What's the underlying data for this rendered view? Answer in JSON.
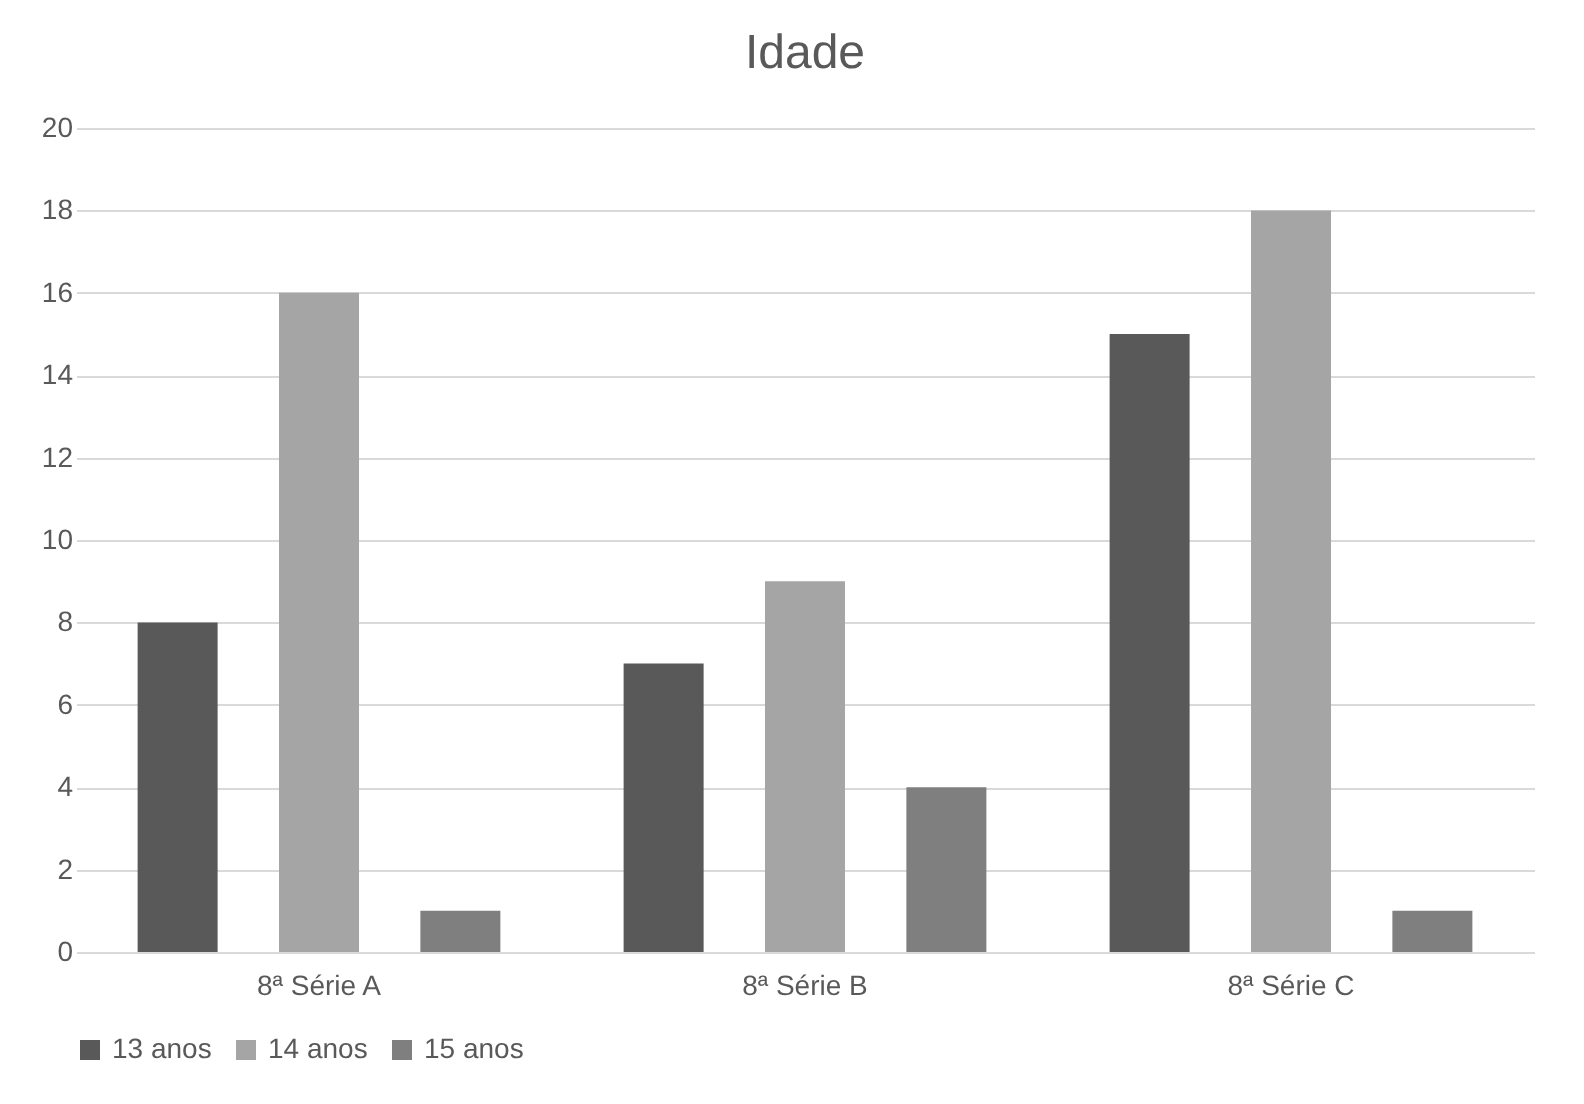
{
  "chart_data": {
    "type": "bar",
    "title": "Idade",
    "categories": [
      "8ª Série A",
      "8ª Série B",
      "8ª Série C"
    ],
    "series": [
      {
        "name": "13 anos",
        "color": "#595959",
        "values": [
          8,
          7,
          15
        ]
      },
      {
        "name": "14 anos",
        "color": "#a5a5a5",
        "values": [
          16,
          9,
          18
        ]
      },
      {
        "name": "15 anos",
        "color": "#7f7f7f",
        "values": [
          1,
          4,
          1
        ]
      }
    ],
    "ylim": [
      0,
      20
    ],
    "yticks": [
      0,
      2,
      4,
      6,
      8,
      10,
      12,
      14,
      16,
      18,
      20
    ],
    "grid": "y",
    "legend": "bottom"
  }
}
